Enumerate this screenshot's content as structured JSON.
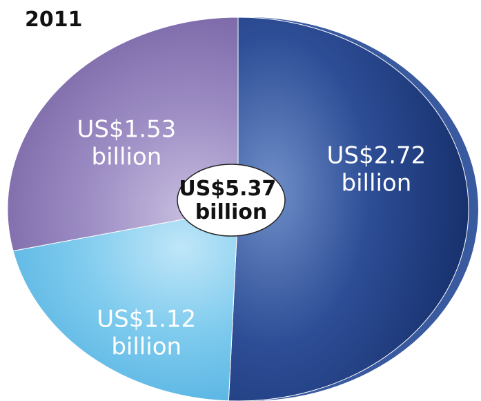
{
  "chart_data": {
    "type": "pie",
    "title": "2011",
    "total": 5.37,
    "total_label": [
      "US$5.37",
      "billion"
    ],
    "slices": [
      {
        "value": 2.72,
        "label": [
          "US$2.72",
          "billion"
        ],
        "color": "#1d3a80"
      },
      {
        "value": 1.12,
        "label": [
          "US$1.12",
          "billion"
        ],
        "color": "#6ec3ea"
      },
      {
        "value": 1.53,
        "label": [
          "US$1.53",
          "billion"
        ],
        "color": "#8a78b4"
      }
    ]
  }
}
